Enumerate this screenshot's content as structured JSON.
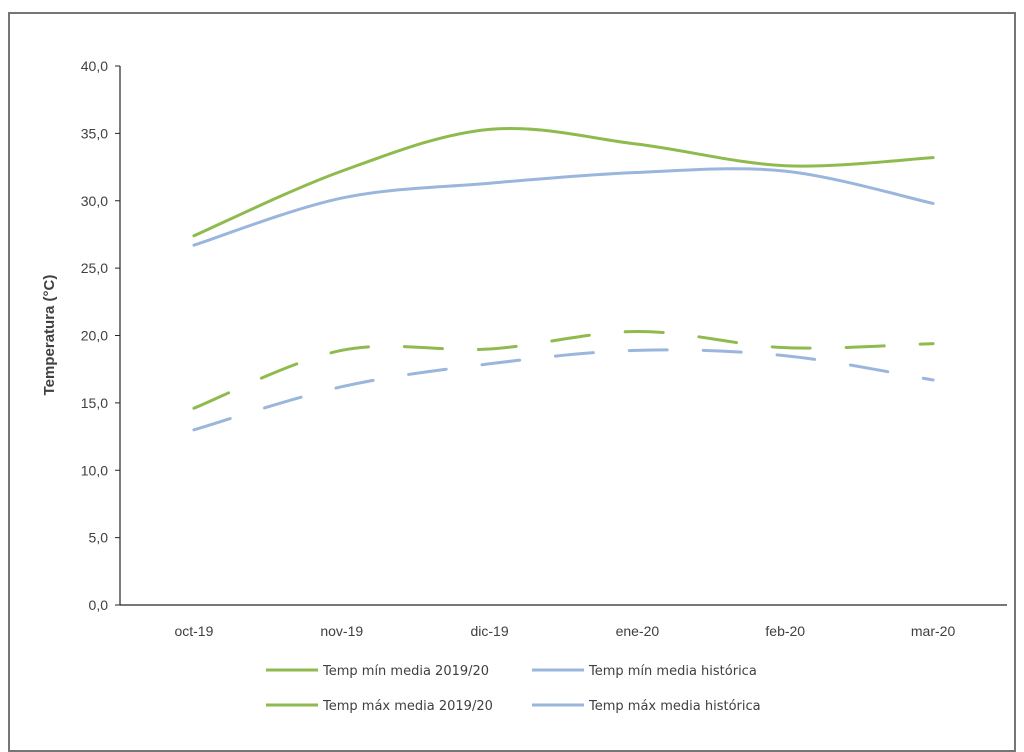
{
  "chart_data": {
    "type": "line",
    "title": "",
    "xlabel": "",
    "ylabel": "Temperatura (°C)",
    "categories": [
      "oct-19",
      "nov-19",
      "dic-19",
      "ene-20",
      "feb-20",
      "mar-20"
    ],
    "ylim": [
      0,
      40
    ],
    "yticks": [
      "0,0",
      "5,0",
      "10,0",
      "15,0",
      "20,0",
      "25,0",
      "30,0",
      "35,0",
      "40,0"
    ],
    "grid": false,
    "legend_position": "bottom",
    "series": [
      {
        "name": "Temp mín media 2019/20",
        "values": [
          14.6,
          18.9,
          19.0,
          20.3,
          19.1,
          19.4
        ],
        "color": "#8fba4e",
        "style": "dashed"
      },
      {
        "name": "Temp mín media histórica",
        "values": [
          13.0,
          16.2,
          17.9,
          18.9,
          18.5,
          16.7
        ],
        "color": "#9bb6dc",
        "style": "dashed"
      },
      {
        "name": "Temp máx media 2019/20",
        "values": [
          27.4,
          32.2,
          35.3,
          34.2,
          32.6,
          33.2
        ],
        "color": "#8fba4e",
        "style": "solid"
      },
      {
        "name": "Temp máx media histórica",
        "values": [
          26.7,
          30.2,
          31.3,
          32.1,
          32.2,
          29.8
        ],
        "color": "#9bb6dc",
        "style": "solid"
      }
    ]
  }
}
